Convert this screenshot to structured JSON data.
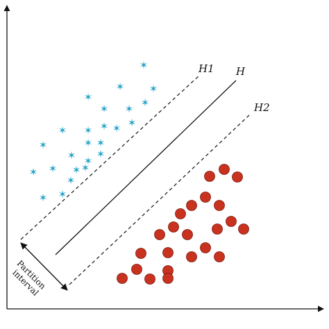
{
  "labels": {
    "h1": "H1",
    "h": "H",
    "h2": "H2",
    "partition_line1": "Partition",
    "partition_line2": "interval"
  },
  "colors": {
    "star": "#2aa4c9",
    "circle_fill": "#c8321f",
    "circle_stroke": "#7a1a10",
    "line": "#111111"
  },
  "classes": {
    "star_count": 25,
    "circle_count": 23
  }
}
